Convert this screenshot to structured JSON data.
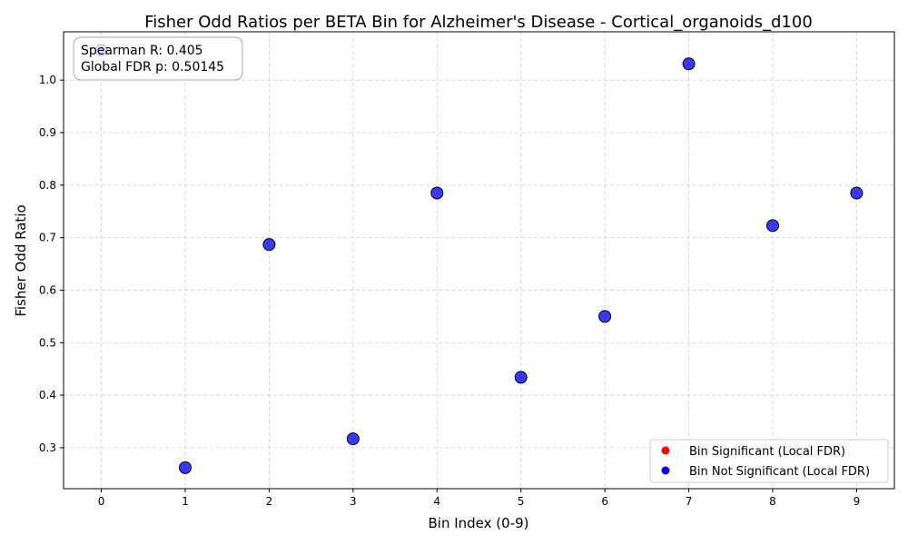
{
  "chart_data": {
    "type": "scatter",
    "title": "Fisher Odd Ratios per BETA Bin for Alzheimer's Disease - Cortical_organoids_d100",
    "xlabel": "Bin Index (0-9)",
    "ylabel": "Fisher Odd Ratio",
    "xlim": [
      -0.45,
      9.45
    ],
    "ylim": [
      0.222,
      1.092
    ],
    "x_ticks": [
      0,
      1,
      2,
      3,
      4,
      5,
      6,
      7,
      8,
      9
    ],
    "y_ticks": [
      0.3,
      0.4,
      0.5,
      0.6,
      0.7,
      0.8,
      0.9,
      1.0
    ],
    "x_tick_labels": [
      "0",
      "1",
      "2",
      "3",
      "4",
      "5",
      "6",
      "7",
      "8",
      "9"
    ],
    "y_tick_labels": [
      "0.3",
      "0.4",
      "0.5",
      "0.6",
      "0.7",
      "0.8",
      "0.9",
      "1.0"
    ],
    "grid": true,
    "series": [
      {
        "name": "Bin Significant (Local FDR)",
        "color": "#ff0000",
        "x": [],
        "y": []
      },
      {
        "name": "Bin Not Significant (Local FDR)",
        "color": "#0000ff",
        "x": [
          0,
          1,
          2,
          3,
          4,
          5,
          6,
          7,
          8,
          9
        ],
        "y": [
          1.057,
          0.262,
          0.687,
          0.317,
          0.785,
          0.434,
          0.55,
          1.031,
          0.723,
          0.785
        ]
      }
    ],
    "annotation": {
      "lines": [
        "Spearman R: 0.405",
        "Global FDR p: 0.50145"
      ]
    },
    "legend_position": "bottom-right"
  }
}
